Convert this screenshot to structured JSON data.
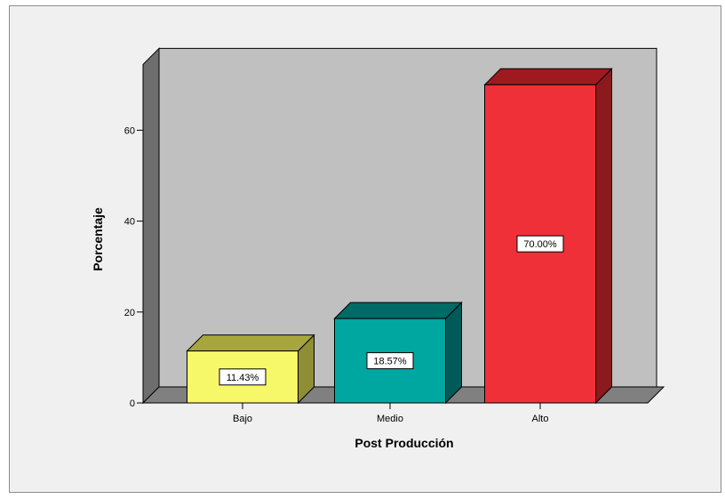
{
  "chart_data": {
    "type": "bar",
    "categories": [
      "Bajo",
      "Medio",
      "Alto"
    ],
    "values": [
      11.43,
      18.57,
      70.0
    ],
    "data_labels": [
      "11.43%",
      "18.57%",
      "70.00%"
    ],
    "xlabel": "Post Producción",
    "ylabel": "Porcentaje",
    "ylim": [
      0,
      70
    ],
    "yticks": [
      0,
      20,
      40,
      60
    ],
    "grid": false,
    "style": "3d",
    "colors": {
      "bars": [
        "#f7f76a",
        "#00a6a0",
        "#f03038"
      ],
      "bars_top": [
        "#a6a63c",
        "#006a66",
        "#9e1a20"
      ],
      "bars_side": [
        "#8e8e34",
        "#005a57",
        "#8a1a1e"
      ],
      "back_wall": "#c0c0c0",
      "side_wall": "#6e6e6e",
      "floor": "#808080"
    }
  }
}
